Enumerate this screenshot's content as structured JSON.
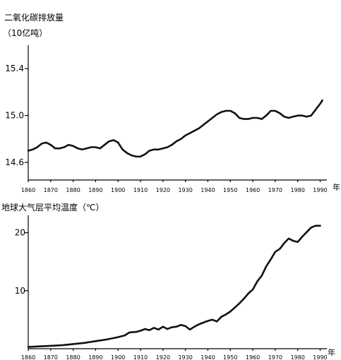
{
  "chart_data": [
    {
      "type": "line",
      "title": "二氧化碳排放量",
      "subtitle": "（10亿吨）",
      "xlabel": "年",
      "x_ticks": [
        "1860",
        "1870",
        "1880",
        "1890",
        "1900",
        "1910",
        "1920",
        "1930",
        "1940",
        "1950",
        "1960",
        "1970",
        "1980",
        "1990"
      ],
      "y_ticks": [
        "14.6",
        "15.0",
        "15.4"
      ],
      "xlim": [
        1860,
        1993
      ],
      "ylim": [
        14.45,
        15.6
      ],
      "grid": false,
      "series": [
        {
          "x": [
            1860,
            1862,
            1864,
            1866,
            1868,
            1870,
            1872,
            1874,
            1876,
            1878,
            1880,
            1882,
            1884,
            1886,
            1888,
            1890,
            1892,
            1894,
            1896,
            1898,
            1900,
            1902,
            1904,
            1906,
            1908,
            1910,
            1912,
            1914,
            1916,
            1918,
            1920,
            1922,
            1924,
            1926,
            1928,
            1930,
            1932,
            1934,
            1936,
            1938,
            1940,
            1942,
            1944,
            1946,
            1948,
            1950,
            1952,
            1954,
            1956,
            1958,
            1960,
            1962,
            1964,
            1966,
            1968,
            1970,
            1972,
            1974,
            1976,
            1978,
            1980,
            1982,
            1984,
            1986,
            1988,
            1990,
            1991
          ],
          "values": [
            14.7,
            14.71,
            14.73,
            14.76,
            14.77,
            14.75,
            14.72,
            14.72,
            14.73,
            14.75,
            14.74,
            14.72,
            14.71,
            14.72,
            14.73,
            14.73,
            14.72,
            14.75,
            14.78,
            14.79,
            14.77,
            14.71,
            14.68,
            14.66,
            14.65,
            14.65,
            14.67,
            14.7,
            14.71,
            14.71,
            14.72,
            14.73,
            14.75,
            14.78,
            14.8,
            14.83,
            14.85,
            14.87,
            14.89,
            14.92,
            14.95,
            14.98,
            15.01,
            15.03,
            15.04,
            15.04,
            15.02,
            14.98,
            14.97,
            14.97,
            14.98,
            14.98,
            14.97,
            15.0,
            15.04,
            15.04,
            15.02,
            14.99,
            14.98,
            14.99,
            15.0,
            15.0,
            14.99,
            15.0,
            15.05,
            15.1,
            15.13
          ]
        }
      ]
    },
    {
      "type": "line",
      "title": "地球大气层平均温度（℃）",
      "xlabel": "年",
      "x_ticks": [
        "1860",
        "1870",
        "1880",
        "1890",
        "1900",
        "1910",
        "1920",
        "1930",
        "1940",
        "1950",
        "1960",
        "1970",
        "1980",
        "1990"
      ],
      "y_ticks": [
        "10",
        "20"
      ],
      "xlim": [
        1860,
        1993
      ],
      "ylim": [
        0,
        23
      ],
      "grid": false,
      "series": [
        {
          "x": [
            1860,
            1865,
            1870,
            1875,
            1880,
            1885,
            1890,
            1895,
            1900,
            1903,
            1905,
            1908,
            1910,
            1912,
            1914,
            1916,
            1918,
            1920,
            1922,
            1924,
            1926,
            1928,
            1930,
            1932,
            1934,
            1936,
            1938,
            1940,
            1942,
            1944,
            1946,
            1948,
            1950,
            1952,
            1954,
            1956,
            1958,
            1960,
            1962,
            1964,
            1966,
            1968,
            1970,
            1972,
            1974,
            1976,
            1978,
            1980,
            1982,
            1984,
            1986,
            1988,
            1990
          ],
          "values": [
            0.3,
            0.4,
            0.5,
            0.6,
            0.8,
            1.0,
            1.3,
            1.6,
            2.0,
            2.3,
            2.8,
            2.9,
            3.1,
            3.4,
            3.2,
            3.6,
            3.3,
            3.8,
            3.4,
            3.7,
            3.8,
            4.1,
            3.9,
            3.3,
            3.8,
            4.2,
            4.5,
            4.8,
            5.0,
            4.7,
            5.5,
            5.9,
            6.4,
            7.1,
            7.8,
            8.6,
            9.5,
            10.2,
            11.6,
            12.6,
            14.2,
            15.4,
            16.7,
            17.2,
            18.2,
            19.0,
            18.6,
            18.4,
            19.3,
            20.1,
            20.9,
            21.2,
            21.2
          ]
        }
      ]
    }
  ]
}
